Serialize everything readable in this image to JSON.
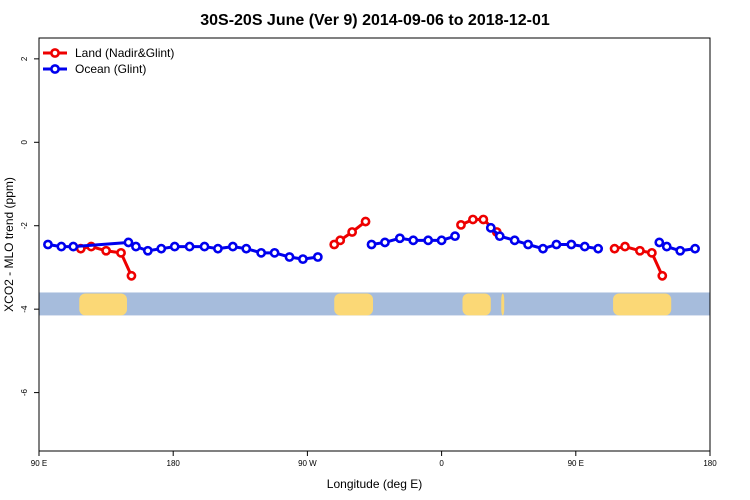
{
  "chart_data": {
    "type": "line",
    "title": "30S-20S June (Ver 9)   2014-09-06 to 2018-12-01",
    "xlabel": "Longitude (deg E)",
    "ylabel": "XCO2 - MLO trend (ppm)",
    "xlim": [
      90,
      540
    ],
    "ylim": [
      -7.4,
      2.5
    ],
    "x_ticks": [
      {
        "value": 90,
        "label": "90 E"
      },
      {
        "value": 180,
        "label": "180"
      },
      {
        "value": 270,
        "label": "90 W"
      },
      {
        "value": 360,
        "label": "0"
      },
      {
        "value": 450,
        "label": "90 E"
      },
      {
        "value": 540,
        "label": "180"
      }
    ],
    "y_ticks": [
      {
        "value": 2,
        "label": "2"
      },
      {
        "value": 0,
        "label": "0"
      },
      {
        "value": -2,
        "label": "-2"
      },
      {
        "value": -4,
        "label": "-4"
      },
      {
        "value": -6,
        "label": "-6"
      }
    ],
    "legend": {
      "position": "top-left"
    },
    "series": [
      {
        "name": "Land (Nadir&Glint)",
        "color": "#ee0000",
        "segments": [
          [
            [
              118,
              -2.55
            ],
            [
              125,
              -2.5
            ],
            [
              135,
              -2.6
            ],
            [
              145,
              -2.65
            ],
            [
              152,
              -3.2
            ]
          ],
          [
            [
              288,
              -2.45
            ],
            [
              292,
              -2.35
            ],
            [
              300,
              -2.15
            ],
            [
              309,
              -1.9
            ]
          ],
          [
            [
              373,
              -1.98
            ],
            [
              381,
              -1.85
            ],
            [
              388,
              -1.85
            ],
            [
              397,
              -2.15
            ]
          ],
          [
            [
              476,
              -2.55
            ],
            [
              483,
              -2.5
            ],
            [
              493,
              -2.6
            ],
            [
              501,
              -2.65
            ],
            [
              508,
              -3.2
            ]
          ]
        ]
      },
      {
        "name": "Ocean (Glint)",
        "color": "#0000ee",
        "segments": [
          [
            [
              96,
              -2.45
            ],
            [
              105,
              -2.5
            ],
            [
              113,
              -2.5
            ],
            [
              150,
              -2.4
            ],
            [
              155,
              -2.5
            ],
            [
              163,
              -2.6
            ],
            [
              172,
              -2.55
            ],
            [
              181,
              -2.5
            ],
            [
              191,
              -2.5
            ],
            [
              201,
              -2.5
            ],
            [
              210,
              -2.55
            ],
            [
              220,
              -2.5
            ],
            [
              229,
              -2.55
            ],
            [
              239,
              -2.65
            ],
            [
              248,
              -2.65
            ],
            [
              258,
              -2.75
            ],
            [
              267,
              -2.8
            ],
            [
              277,
              -2.75
            ]
          ],
          [
            [
              313,
              -2.45
            ],
            [
              322,
              -2.4
            ],
            [
              332,
              -2.3
            ],
            [
              341,
              -2.35
            ],
            [
              351,
              -2.35
            ],
            [
              360,
              -2.35
            ],
            [
              369,
              -2.25
            ]
          ],
          [
            [
              393,
              -2.05
            ],
            [
              399,
              -2.25
            ],
            [
              409,
              -2.35
            ],
            [
              418,
              -2.45
            ],
            [
              428,
              -2.55
            ],
            [
              437,
              -2.45
            ],
            [
              447,
              -2.45
            ],
            [
              456,
              -2.5
            ],
            [
              465,
              -2.55
            ]
          ],
          [
            [
              506,
              -2.4
            ],
            [
              511,
              -2.5
            ],
            [
              520,
              -2.6
            ],
            [
              530,
              -2.55
            ]
          ]
        ]
      }
    ],
    "surface_band": {
      "ymin": -4.15,
      "ymax": -3.6,
      "ocean_color": "#a6bcdc",
      "land_color": "#fbd876",
      "land_ranges": [
        [
          117,
          149
        ],
        [
          288,
          314
        ],
        [
          374,
          393
        ],
        [
          400,
          402
        ],
        [
          475,
          514
        ]
      ]
    }
  }
}
